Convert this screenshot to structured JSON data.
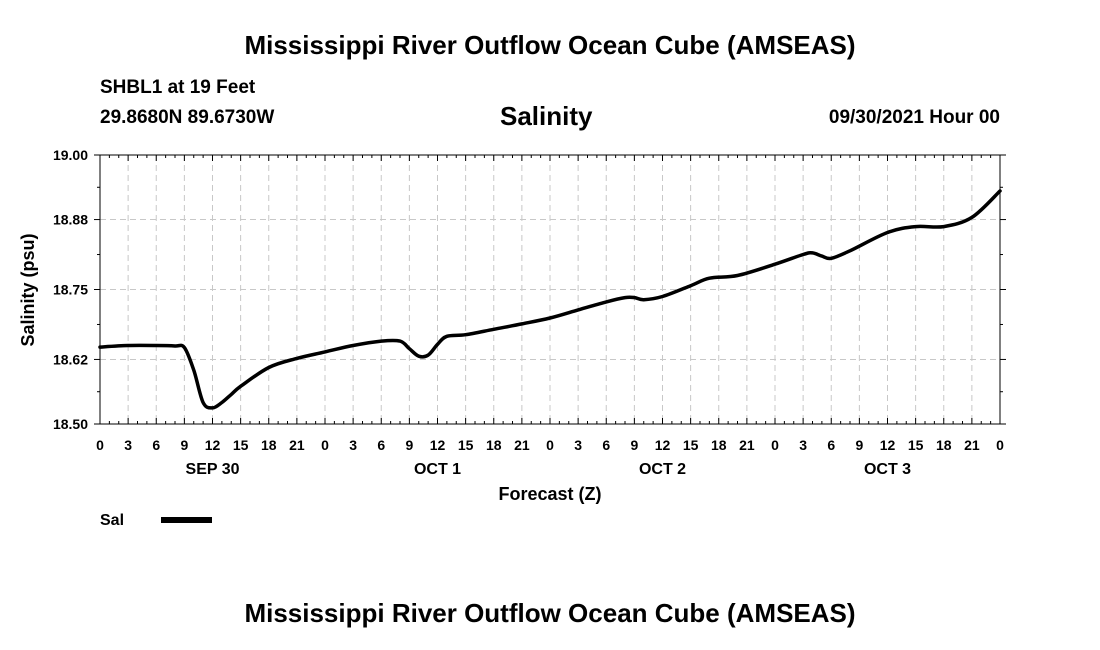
{
  "header": {
    "title": "Mississippi River Outflow Ocean Cube (AMSEAS)",
    "station": "SHBL1 at 19 Feet",
    "coords": "29.8680N  89.6730W",
    "parameter": "Salinity",
    "datetime": "09/30/2021 Hour 00"
  },
  "footer": {
    "title": "Mississippi River Outflow Ocean Cube (AMSEAS)"
  },
  "chart_data": {
    "type": "line",
    "title": "Salinity",
    "xlabel": "Forecast (Z)",
    "ylabel": "Salinity (psu)",
    "xlim": [
      0,
      96
    ],
    "ylim": [
      18.5,
      19.0
    ],
    "yticks": [
      18.5,
      18.62,
      18.75,
      18.88,
      19.0
    ],
    "ytick_labels": [
      "18.50",
      "18.62",
      "18.75",
      "18.88",
      "19.00"
    ],
    "xticks": [
      0,
      3,
      6,
      9,
      12,
      15,
      18,
      21,
      24,
      27,
      30,
      33,
      36,
      39,
      42,
      45,
      48,
      51,
      54,
      57,
      60,
      63,
      66,
      69,
      72,
      75,
      78,
      81,
      84,
      87,
      90,
      93,
      96
    ],
    "xtick_labels": [
      "0",
      "3",
      "6",
      "9",
      "12",
      "15",
      "18",
      "21",
      "0",
      "3",
      "6",
      "9",
      "12",
      "15",
      "18",
      "21",
      "0",
      "3",
      "6",
      "9",
      "12",
      "15",
      "18",
      "21",
      "0",
      "3",
      "6",
      "9",
      "12",
      "15",
      "18",
      "21",
      "0"
    ],
    "day_labels": [
      {
        "x": 12,
        "label": "SEP 30"
      },
      {
        "x": 36,
        "label": "OCT 1"
      },
      {
        "x": 60,
        "label": "OCT 2"
      },
      {
        "x": 84,
        "label": "OCT 3"
      }
    ],
    "grid": true,
    "legend": [
      {
        "name": "Sal",
        "color": "#000000"
      }
    ],
    "series": [
      {
        "name": "Sal",
        "color": "#000000",
        "x": [
          0,
          3,
          6,
          8,
          9,
          10,
          11,
          12,
          13,
          14,
          15,
          18,
          21,
          24,
          27,
          30,
          32,
          33,
          34,
          35,
          36,
          37,
          39,
          42,
          45,
          48,
          51,
          54,
          56,
          57,
          58,
          60,
          63,
          65,
          68,
          72,
          75,
          76,
          77,
          78,
          80,
          84,
          87,
          90,
          93,
          96
        ],
        "y": [
          18.643,
          18.646,
          18.646,
          18.645,
          18.642,
          18.6,
          18.54,
          18.53,
          18.54,
          18.555,
          18.57,
          18.605,
          18.622,
          18.634,
          18.646,
          18.654,
          18.654,
          18.64,
          18.626,
          18.628,
          18.648,
          18.663,
          18.666,
          18.676,
          18.686,
          18.697,
          18.712,
          18.727,
          18.735,
          18.735,
          18.731,
          18.737,
          18.757,
          18.771,
          18.776,
          18.797,
          18.815,
          18.818,
          18.812,
          18.808,
          18.822,
          18.856,
          18.867,
          18.867,
          18.884,
          18.933
        ]
      }
    ]
  }
}
